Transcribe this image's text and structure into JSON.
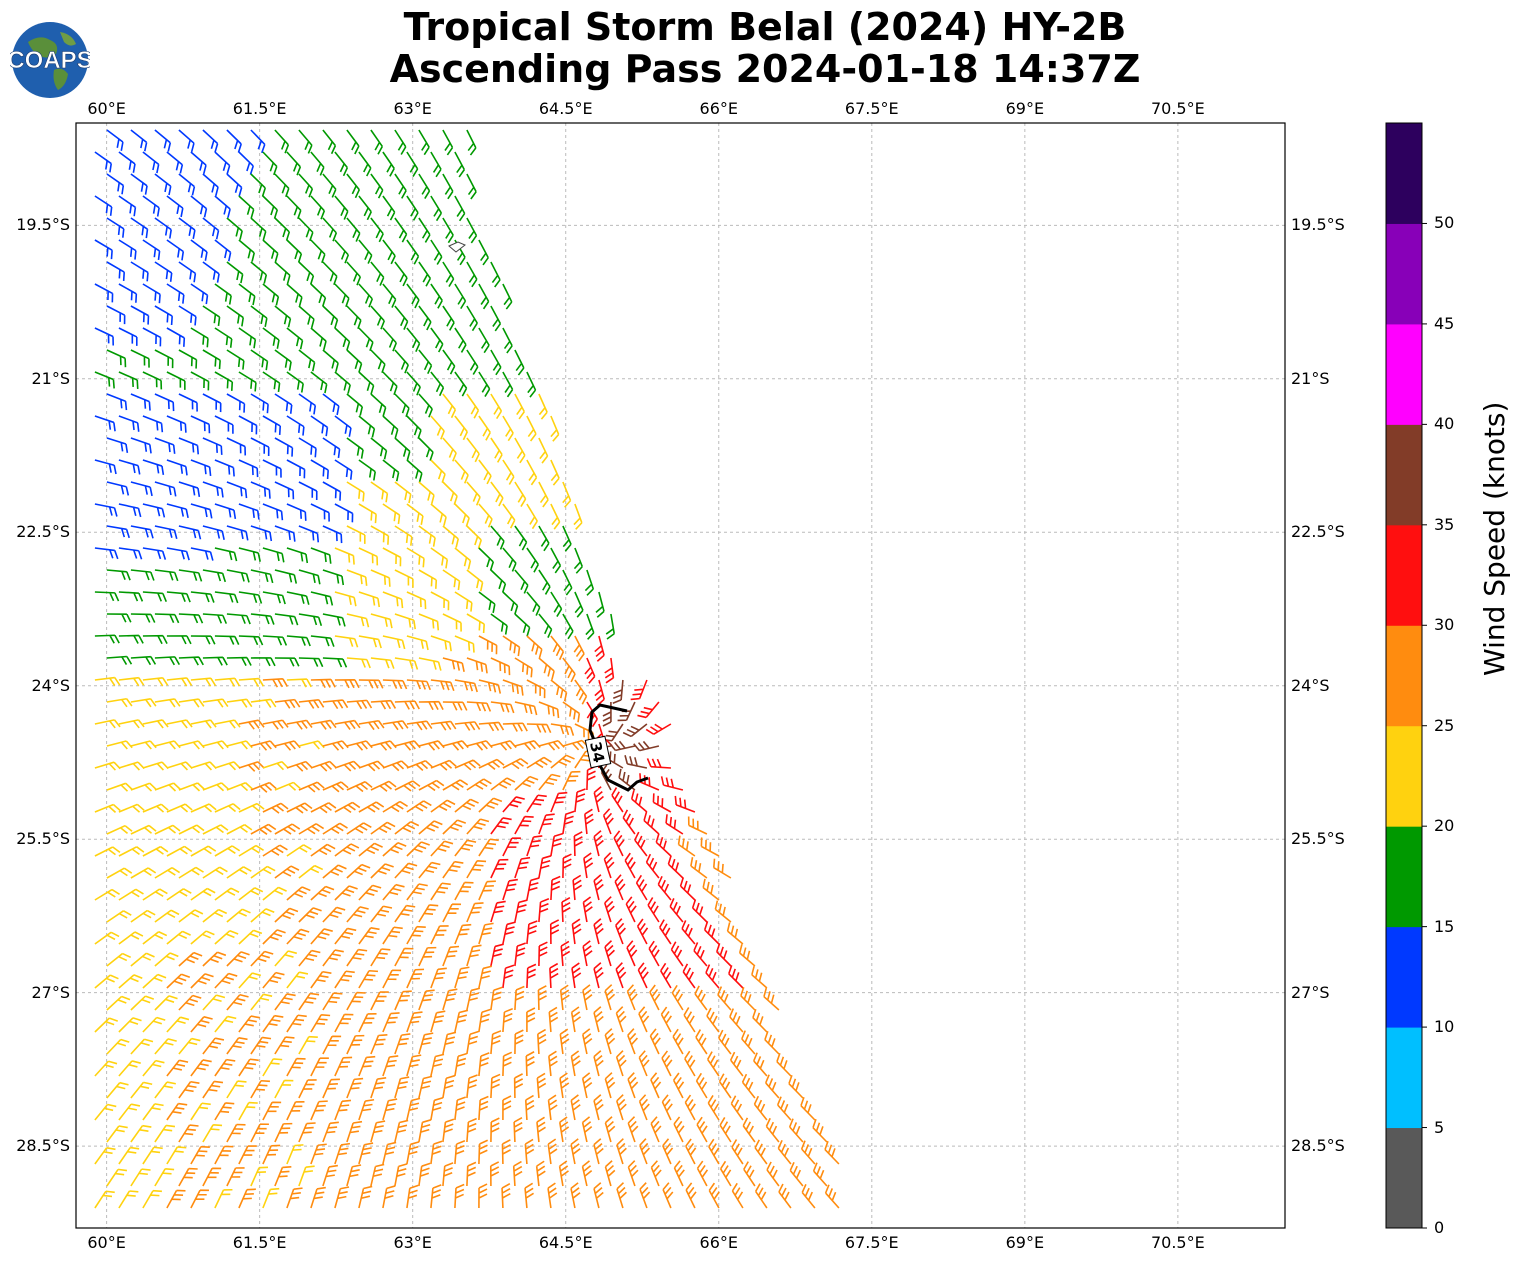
{
  "title_line1": "Tropical Storm Belal (2024) HY-2B",
  "title_line2": "Ascending Pass 2024-01-18 14:37Z",
  "logo_text": "COAPS",
  "x_ticks": [
    "60°E",
    "61.5°E",
    "63°E",
    "64.5°E",
    "66°E",
    "67.5°E",
    "69°E",
    "70.5°E"
  ],
  "y_ticks": [
    "19.5°S",
    "21°S",
    "22.5°S",
    "24°S",
    "25.5°S",
    "27°S",
    "28.5°S"
  ],
  "contour_label": "34",
  "colorbar": {
    "label": "Wind Speed (knots)",
    "ticks": [
      "0",
      "5",
      "10",
      "15",
      "20",
      "25",
      "30",
      "35",
      "40",
      "45",
      "50"
    ],
    "colors": [
      "#595959",
      "#00bfff",
      "#0039ff",
      "#009900",
      "#ffd20f",
      "#ff8c0f",
      "#ff0f0f",
      "#823c28",
      "#ff00ff",
      "#8800b8",
      "#2d005e"
    ]
  },
  "map": {
    "lon_range": [
      59.7,
      71.55
    ],
    "lat_range": [
      -29.3,
      -18.5
    ],
    "grid": true,
    "barb_colors": {
      "blue": "#0039ff",
      "green": "#009900",
      "yellow": "#ffd20f",
      "orange": "#ff8c0f",
      "red": "#ff0f0f",
      "brown": "#823c28"
    }
  }
}
